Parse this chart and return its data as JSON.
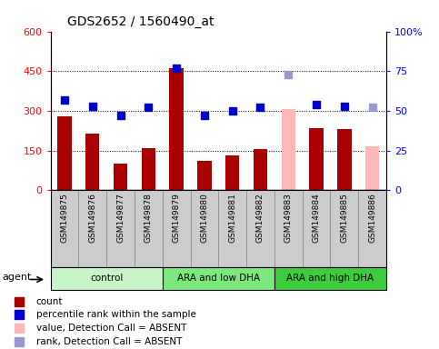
{
  "title": "GDS2652 / 1560490_at",
  "samples": [
    "GSM149875",
    "GSM149876",
    "GSM149877",
    "GSM149878",
    "GSM149879",
    "GSM149880",
    "GSM149881",
    "GSM149882",
    "GSM149883",
    "GSM149884",
    "GSM149885",
    "GSM149886"
  ],
  "counts": [
    280,
    215,
    100,
    160,
    460,
    110,
    130,
    155,
    305,
    235,
    230,
    165
  ],
  "absent_count": [
    false,
    false,
    false,
    false,
    false,
    false,
    false,
    false,
    true,
    false,
    false,
    true
  ],
  "pct_ranks": [
    57,
    53,
    47,
    52,
    77,
    47,
    50,
    52,
    73,
    54,
    53,
    52
  ],
  "absent_rank": [
    false,
    false,
    false,
    false,
    false,
    false,
    false,
    false,
    true,
    false,
    false,
    true
  ],
  "groups": [
    {
      "label": "control",
      "start": 0,
      "end": 4,
      "color": "#c8f5c8"
    },
    {
      "label": "ARA and low DHA",
      "start": 4,
      "end": 8,
      "color": "#7de87d"
    },
    {
      "label": "ARA and high DHA",
      "start": 8,
      "end": 12,
      "color": "#3dcc3d"
    }
  ],
  "bar_color_normal": "#aa0000",
  "bar_color_absent": "#ffb8b8",
  "rank_color_normal": "#0000cc",
  "rank_color_absent": "#9999cc",
  "ylim_left": [
    0,
    600
  ],
  "ylim_right": [
    0,
    100
  ],
  "yticks_left": [
    0,
    150,
    300,
    450,
    600
  ],
  "yticks_right": [
    0,
    25,
    50,
    75,
    100
  ],
  "ytick_labels_left": [
    "0",
    "150",
    "300",
    "450",
    "600"
  ],
  "ytick_labels_right": [
    "0",
    "25",
    "50",
    "75",
    "100%"
  ],
  "grid_yticks": [
    150,
    300,
    450
  ],
  "legend_items": [
    {
      "label": "count",
      "color": "#aa0000"
    },
    {
      "label": "percentile rank within the sample",
      "color": "#0000cc"
    },
    {
      "label": "value, Detection Call = ABSENT",
      "color": "#ffb8b8"
    },
    {
      "label": "rank, Detection Call = ABSENT",
      "color": "#9999cc"
    }
  ],
  "marker_size": 6,
  "bar_width": 0.5,
  "xticklabel_bg": "#cccccc",
  "xticklabel_border": "#888888"
}
